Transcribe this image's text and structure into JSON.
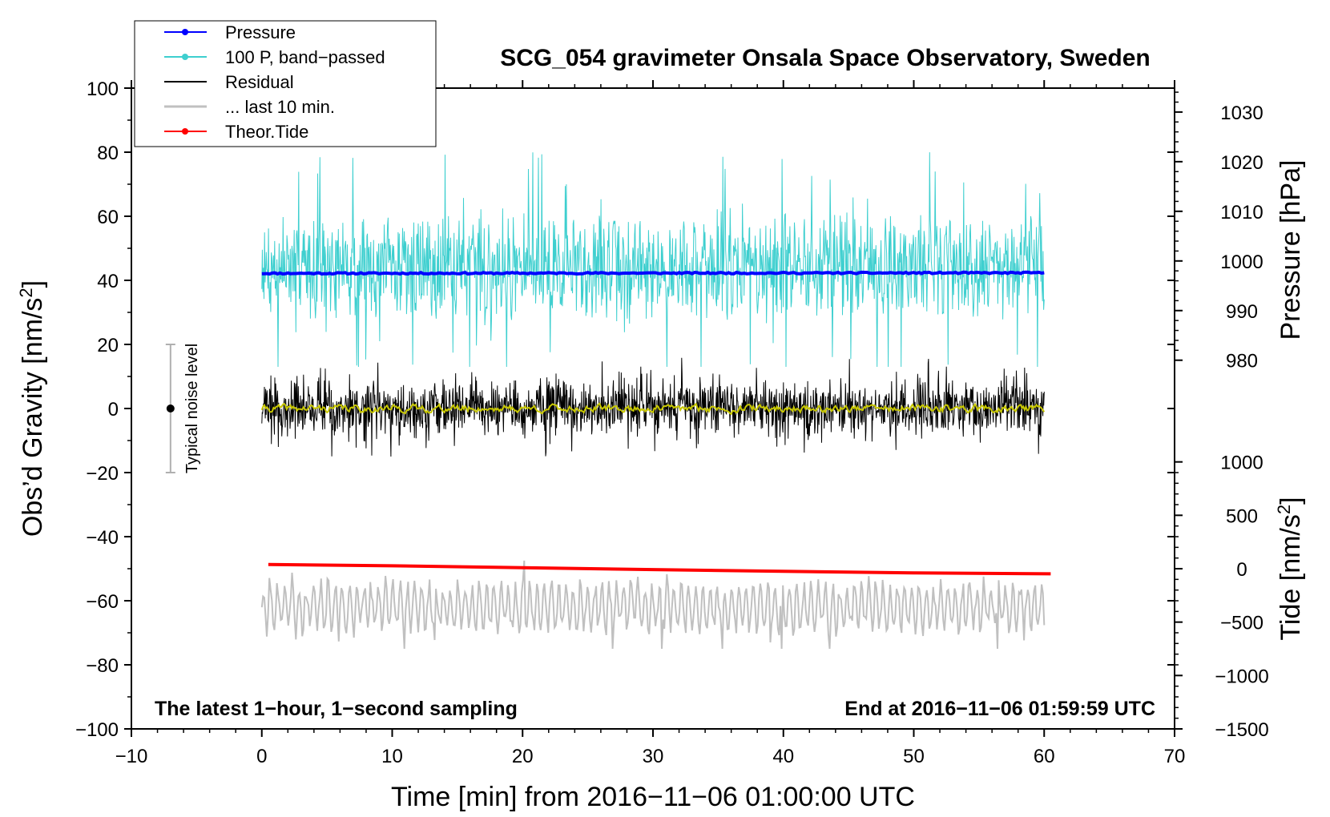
{
  "chart_data": {
    "type": "line",
    "title": "SCG_054 gravimeter Onsala Space Observatory, Sweden",
    "xlabel": "Time [min] from 2016−11−06 01:00:00 UTC",
    "ylabel": "Obs’d Gravity [nm/s",
    "ylabel_sup": "2",
    "ylabel_end": "]",
    "xlim": [
      -10,
      70
    ],
    "ylim": [
      -100,
      100
    ],
    "x_ticks": [
      -10,
      0,
      10,
      20,
      30,
      40,
      50,
      60,
      70
    ],
    "x_tick_labels": [
      "−10",
      "0",
      "10",
      "20",
      "30",
      "40",
      "50",
      "60",
      "70"
    ],
    "y_ticks": [
      -100,
      -80,
      -60,
      -40,
      -20,
      0,
      20,
      40,
      60,
      80,
      100
    ],
    "y_tick_labels": [
      "−100",
      "−80",
      "−60",
      "−40",
      "−20",
      "0",
      "20",
      "40",
      "60",
      "80",
      "100"
    ],
    "right_axes": {
      "pressure": {
        "label": "Pressure [hPa]",
        "ticks": [
          980,
          990,
          1000,
          1010,
          1020,
          1030
        ],
        "tick_labels": [
          "980",
          "990",
          "1000",
          "1010",
          "1020",
          "1030"
        ],
        "mapping": {
          "value_a": 980,
          "gravity_a": 15.07,
          "value_b": 1030,
          "gravity_b": 92.53
        }
      },
      "tide": {
        "label": "Tide [nm/s",
        "label_sup": "2",
        "label_end": "]",
        "ticks": [
          -1500,
          -1000,
          -500,
          0,
          500,
          1000
        ],
        "tick_labels": [
          "−1500",
          "−1000",
          "−500",
          "0",
          "500",
          "1000"
        ],
        "mapping": {
          "value_a": -1500,
          "gravity_a": -100,
          "value_b": 1000,
          "gravity_b": -16.67
        }
      }
    },
    "legend": {
      "position": "top-left",
      "entries": [
        {
          "label": "Pressure",
          "color": "#0000ff",
          "marker": true
        },
        {
          "label": "100 P, band−passed",
          "color": "#3ecfcf",
          "marker": true
        },
        {
          "label": "Residual",
          "color": "#000000",
          "marker": false
        },
        {
          "label": "... last 10 min.",
          "color": "#c0c0c0",
          "marker": false
        },
        {
          "label": "Theor.Tide",
          "color": "#ff0000",
          "marker": true
        }
      ]
    },
    "noise_bar": {
      "x": -7,
      "center": 0,
      "low": -20,
      "high": 20,
      "label": "Typical noise level"
    },
    "annotations": {
      "left": "The latest 1−hour, 1−second sampling",
      "right": "End at 2016−11−06 01:59:59 UTC"
    },
    "series": [
      {
        "name": "Pressure",
        "unit": "hPa",
        "color": "#0000ff",
        "x_range": [
          0,
          60
        ],
        "value_start": 997.5,
        "value_end": 997.6
      },
      {
        "name": "100 P, band−passed",
        "color": "#3ecfcf",
        "x_range": [
          0,
          60
        ],
        "baseline": 42,
        "typical_range": [
          28,
          65
        ],
        "extremes": [
          13,
          81
        ]
      },
      {
        "name": "Residual",
        "color": "#000000",
        "x_range": [
          0,
          60
        ],
        "baseline": 0,
        "typical_range": [
          -10,
          10
        ],
        "extremes": [
          -15,
          18
        ]
      },
      {
        "name": "Residual smoothed",
        "color": "#c8c800",
        "x_range": [
          0,
          60
        ],
        "baseline": 0,
        "typical_range": [
          -2,
          2
        ]
      },
      {
        "name": "... last 10 min.",
        "color": "#c0c0c0",
        "x_range": [
          0,
          60
        ],
        "baseline": -62,
        "typical_range": [
          -70,
          -55
        ],
        "extremes": [
          -75,
          -45
        ]
      },
      {
        "name": "Theor.Tide",
        "unit": "nm/s2",
        "color": "#ff0000",
        "x": [
          0.5,
          10,
          20,
          30,
          40,
          50,
          60.5
        ],
        "values": [
          40,
          27,
          10,
          -8,
          -25,
          -39,
          -48
        ]
      }
    ]
  }
}
